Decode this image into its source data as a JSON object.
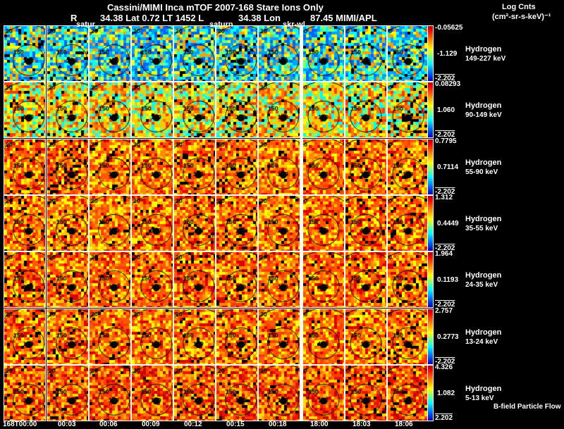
{
  "header": {
    "title": "Cassini/MIMI Inca mTOF  2007-168   Stare   Ions Only",
    "subtitle_r": "R",
    "subtitle_ephem": "34.38 Lat 0.72 LT 1452 L",
    "subtitle_lon": "34.38 Lon",
    "subtitle_mission": "87.45  MIMI/APL",
    "units_title": "Log Cnts",
    "units": "(cm²-sr-s-keV)⁻¹",
    "marker_1": "satur",
    "marker_2": "saturn",
    "marker_3": "skr-wl"
  },
  "footer": {
    "legend_note": "B-field Particle Flow",
    "time_labels": [
      "168T00:00",
      "00:03",
      "00:06",
      "00:09",
      "00:12",
      "00:15",
      "00:18",
      "18:00",
      "18:03",
      "18:06"
    ]
  },
  "chart_data": {
    "type": "heatmap",
    "title": "Cassini/MIMI Inca mTOF  2007-168   Stare   Ions Only",
    "colorbar_label": "Log Cnts (cm²-sr-s-keV)⁻¹",
    "contour_labels": [
      "120",
      "150",
      "180",
      "90"
    ],
    "rows": [
      {
        "species": "Hydrogen",
        "energy": "149-227 keV",
        "cb_max": "-0.05625",
        "cb_mid": "-1.129",
        "cb_min": "-2.202",
        "palette": "cool"
      },
      {
        "species": "Hydrogen",
        "energy": "90-149 keV",
        "cb_max": "0.08293",
        "cb_mid": "1.060",
        "cb_min": "-2.202",
        "palette": "warm"
      },
      {
        "species": "Hydrogen",
        "energy": "55-90 keV",
        "cb_max": "0.7795",
        "cb_mid": "0.7114",
        "cb_min": "-2.202",
        "palette": "hot"
      },
      {
        "species": "Hydrogen",
        "energy": "35-55 keV",
        "cb_max": "1.312",
        "cb_mid": "0.4449",
        "cb_min": "-2.202",
        "palette": "hot"
      },
      {
        "species": "Hydrogen",
        "energy": "24-35 keV",
        "cb_max": "1.964",
        "cb_mid": "0.1193",
        "cb_min": "-2.202",
        "palette": "hot"
      },
      {
        "species": "Hydrogen",
        "energy": "13-24 keV",
        "cb_max": "2.757",
        "cb_mid": "0.2773",
        "cb_min": "-2.202",
        "palette": "hot"
      },
      {
        "species": "Hydrogen",
        "energy": "5-13 keV",
        "cb_max": "4.326",
        "cb_mid": "1.082",
        "cb_min": "2.202",
        "palette": "hotter"
      }
    ],
    "colors": {
      "dark_red": "#a00000",
      "red": "#ff0000",
      "orange": "#ff8000",
      "yellow": "#ffff00",
      "cyan": "#00ffff",
      "blue": "#0000c0"
    }
  }
}
